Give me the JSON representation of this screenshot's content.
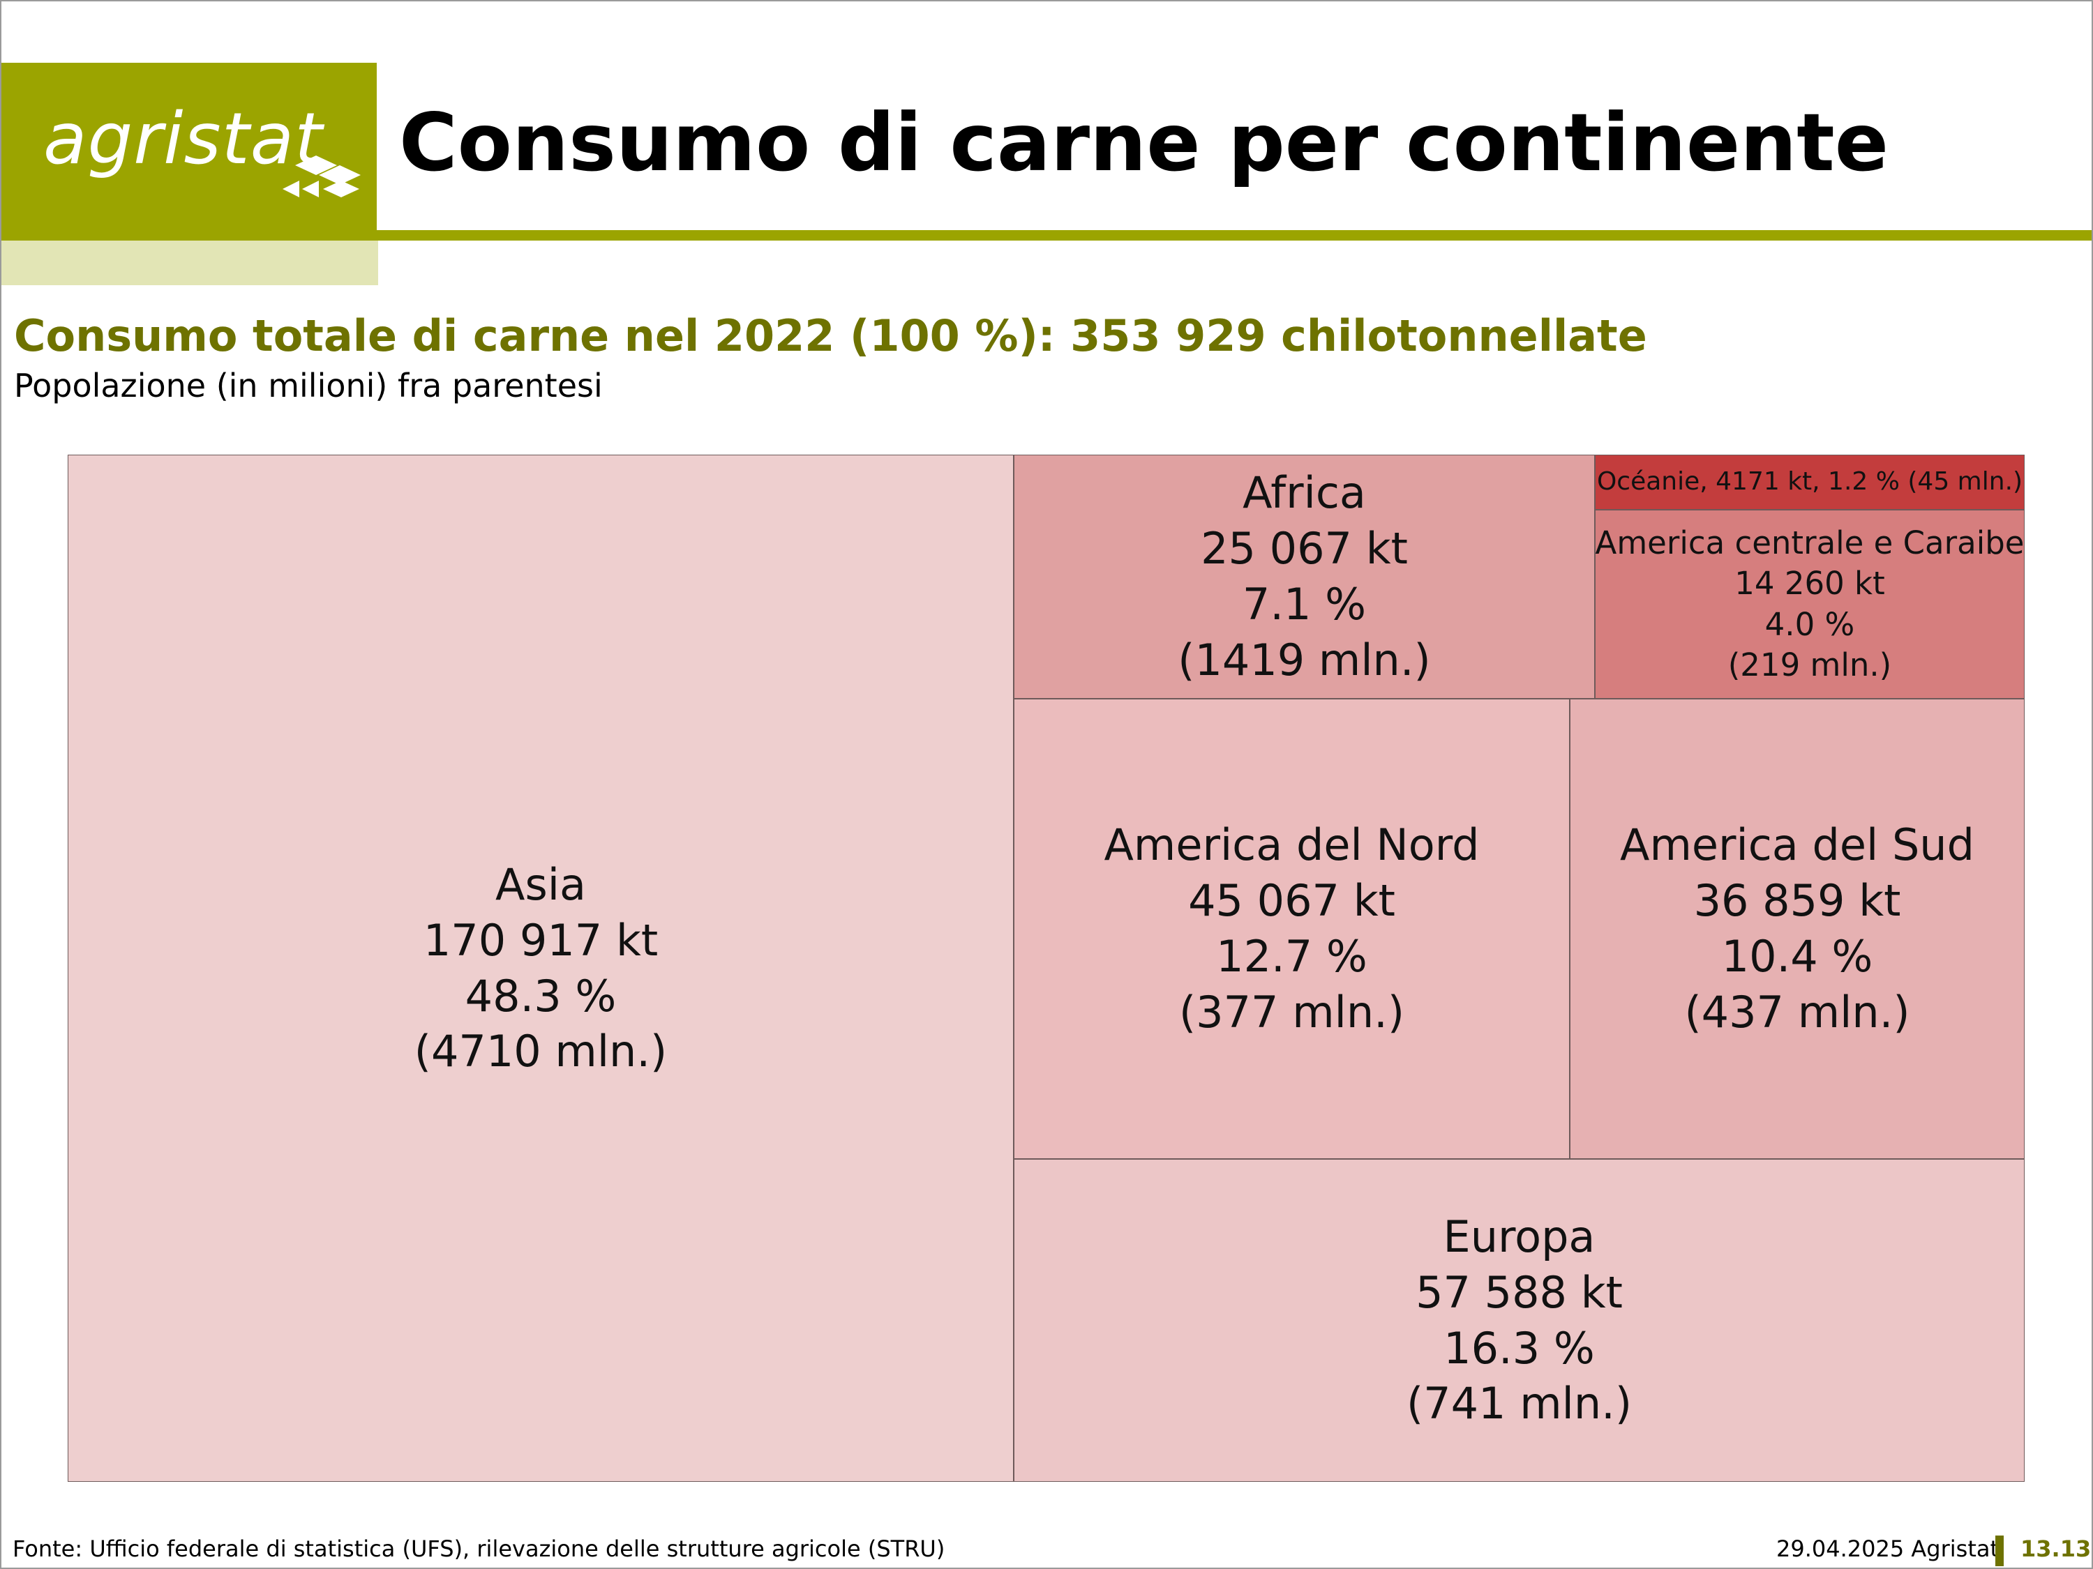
{
  "logo": {
    "text": "agristat"
  },
  "header": {
    "title": "Consumo di carne per continente"
  },
  "chart_data": {
    "type": "treemap",
    "title": "Consumo totale di carne nel 2022 (100 %): 353 929 chilotonnellate",
    "subtitle": "Popolazione (in milioni) fra parentesi",
    "total": 353929,
    "unit": "kt",
    "cells": [
      {
        "name": "Asia",
        "value": 170917,
        "value_label": "170 917 kt",
        "share_label": "48.3 %",
        "population_label": "(4710 mln.)",
        "color": "#eecfcf"
      },
      {
        "name": "Africa",
        "value": 25067,
        "value_label": "25 067 kt",
        "share_label": "7.1 %",
        "population_label": "(1419 mln.)",
        "color": "#e0a1a1"
      },
      {
        "name": "Océanie",
        "value": 4171,
        "inline_label": "Océanie, 4171 kt, 1.2 % (45 mln.)",
        "color": "#c33d3d"
      },
      {
        "name": "America centrale e Caraibe",
        "value": 14260,
        "value_label": "14 260 kt",
        "share_label": "4.0 %",
        "population_label": "(219 mln.)",
        "color": "#d67e7e"
      },
      {
        "name": "America del Nord",
        "value": 45067,
        "value_label": "45 067 kt",
        "share_label": "12.7 %",
        "population_label": "(377 mln.)",
        "color": "#ebbcbd"
      },
      {
        "name": "America del Sud",
        "value": 36859,
        "value_label": "36 859 kt",
        "share_label": "10.4 %",
        "population_label": "(437 mln.)",
        "color": "#e6b1b2"
      },
      {
        "name": "Europa",
        "value": 57588,
        "value_label": "57 588 kt",
        "share_label": "16.3 %",
        "population_label": "(741 mln.)",
        "color": "#ecc6c7"
      }
    ]
  },
  "footer": {
    "source": "Fonte: Ufficio federale di statistica (UFS), rilevazione delle strutture agricole (STRU)",
    "date": "29.04.2025 Agristat",
    "page": "13.13"
  }
}
